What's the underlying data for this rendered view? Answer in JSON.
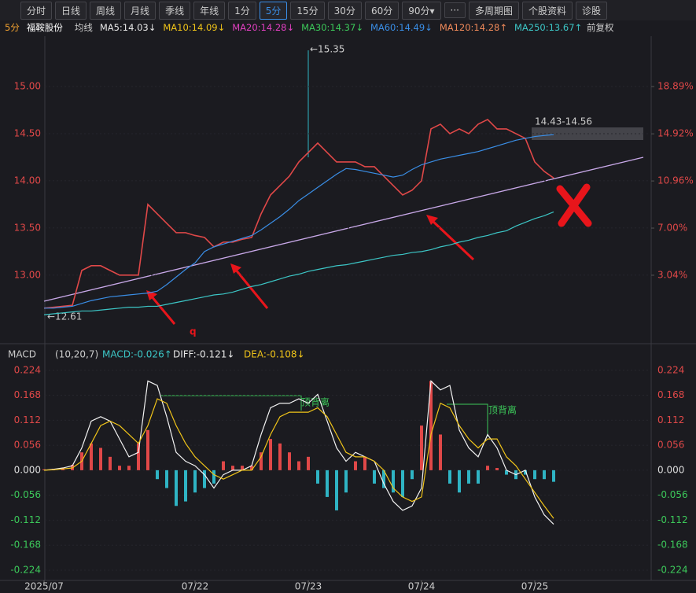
{
  "toolbar": {
    "buttons": [
      "分时",
      "日线",
      "周线",
      "月线",
      "季线",
      "年线",
      "1分",
      "5分",
      "15分",
      "30分",
      "60分",
      "90分▾",
      "···",
      "多周期图",
      "个股资料",
      "诊股"
    ],
    "active": 7
  },
  "info_bar": {
    "period": "5分",
    "stock": "福鞍股份",
    "label": "均线",
    "ma": [
      {
        "text": "MA5:14.03↓",
        "color": "#e8e8e8"
      },
      {
        "text": "MA10:14.09↓",
        "color": "#f0c419"
      },
      {
        "text": "MA20:14.28↓",
        "color": "#e040c0"
      },
      {
        "text": "MA30:14.37↓",
        "color": "#3cc85a"
      },
      {
        "text": "MA60:14.49↓",
        "color": "#3a8ee6"
      },
      {
        "text": "MA120:14.28↑",
        "color": "#f08a5a"
      },
      {
        "text": "MA250:13.67↑",
        "color": "#3cc6c6"
      }
    ],
    "adjust": "前复权"
  },
  "macd_header": {
    "name": "MACD",
    "params": "(10,20,7)",
    "items": [
      {
        "text": "MACD:-0.026↑",
        "color": "#3cc6c6"
      },
      {
        "text": "DIFF:-0.121↓",
        "color": "#e8e8e8"
      },
      {
        "text": "DEA:-0.108↓",
        "color": "#f0c419"
      }
    ]
  },
  "chart_data": [
    {
      "type": "line",
      "categories": [
        "2025/07",
        null,
        null,
        null,
        null,
        null,
        null,
        null,
        null,
        null,
        null,
        null,
        null,
        null,
        null,
        null,
        "07/22",
        null,
        null,
        null,
        null,
        null,
        null,
        null,
        null,
        null,
        null,
        null,
        "07/23",
        null,
        null,
        null,
        null,
        null,
        null,
        null,
        null,
        null,
        null,
        null,
        "07/24",
        null,
        null,
        null,
        null,
        null,
        null,
        null,
        null,
        null,
        null,
        null,
        "07/25",
        null,
        null
      ],
      "values": [
        12.65,
        12.66,
        12.67,
        12.68,
        13.05,
        13.1,
        13.1,
        13.05,
        13.0,
        13.0,
        13.0,
        13.75,
        13.65,
        13.55,
        13.45,
        13.45,
        13.42,
        13.4,
        13.3,
        13.35,
        13.35,
        13.38,
        13.4,
        13.65,
        13.85,
        13.95,
        14.05,
        14.2,
        14.3,
        14.4,
        14.3,
        14.2,
        14.2,
        14.2,
        14.15,
        14.15,
        14.05,
        13.95,
        13.85,
        13.9,
        14.0,
        14.55,
        14.6,
        14.5,
        14.55,
        14.5,
        14.6,
        14.65,
        14.55,
        14.55,
        14.5,
        14.45,
        14.2,
        14.1,
        14.03
      ],
      "color": "#e04848",
      "series": [
        {
          "name": "MA60",
          "color": "#3a8ee6",
          "values": [
            12.65,
            12.65,
            12.66,
            12.67,
            12.7,
            12.73,
            12.75,
            12.77,
            12.78,
            12.79,
            12.8,
            12.81,
            12.83,
            12.9,
            12.98,
            13.06,
            13.13,
            13.25,
            13.3,
            13.33,
            13.36,
            13.39,
            13.42,
            13.48,
            13.55,
            13.62,
            13.7,
            13.79,
            13.86,
            13.93,
            14.0,
            14.07,
            14.13,
            14.12,
            14.1,
            14.08,
            14.06,
            14.04,
            14.06,
            14.12,
            14.17,
            14.2,
            14.23,
            14.25,
            14.27,
            14.29,
            14.31,
            14.34,
            14.37,
            14.4,
            14.43,
            14.45,
            14.47,
            14.48,
            14.49
          ]
        },
        {
          "name": "MA250",
          "color": "#3cc6c6",
          "values": [
            12.58,
            12.59,
            12.6,
            12.61,
            12.62,
            12.62,
            12.63,
            12.64,
            12.65,
            12.66,
            12.66,
            12.67,
            12.67,
            12.69,
            12.71,
            12.73,
            12.75,
            12.77,
            12.79,
            12.8,
            12.82,
            12.85,
            12.88,
            12.9,
            12.93,
            12.96,
            12.99,
            13.01,
            13.04,
            13.06,
            13.08,
            13.1,
            13.11,
            13.13,
            13.15,
            13.17,
            13.19,
            13.21,
            13.22,
            13.24,
            13.25,
            13.27,
            13.3,
            13.32,
            13.35,
            13.37,
            13.4,
            13.42,
            13.45,
            13.47,
            13.52,
            13.56,
            13.6,
            13.63,
            13.67
          ]
        }
      ],
      "ylim": [
        12.29,
        15.5
      ],
      "yticks": [
        {
          "value": 13,
          "label": "13.00"
        },
        {
          "value": 13.5,
          "label": "13.50"
        },
        {
          "value": 14,
          "label": "14.00"
        },
        {
          "value": 14.5,
          "label": "14.50"
        },
        {
          "value": 15,
          "label": "15.00"
        }
      ],
      "y2lim": [
        -2.58,
        22.86
      ],
      "y2ticks": [
        {
          "value": 3.04,
          "label": "3.04%"
        },
        {
          "value": 7.0,
          "label": "7.00%"
        },
        {
          "value": 10.96,
          "label": "10.96%"
        },
        {
          "value": 14.92,
          "label": "14.92%"
        },
        {
          "value": 18.89,
          "label": "18.89%"
        }
      ],
      "annotations": [
        "←15.35",
        "←12.61",
        "14.43-14.56",
        "q"
      ]
    },
    {
      "type": "bar",
      "up_color": "#e04848",
      "down_color": "#2fb4c4",
      "values": [
        0.002,
        0.003,
        0.005,
        0.012,
        0.04,
        0.06,
        0.05,
        0.03,
        0.01,
        0.01,
        0.06,
        0.09,
        -0.02,
        -0.04,
        -0.08,
        -0.07,
        -0.05,
        -0.04,
        -0.03,
        0.02,
        0.01,
        0.01,
        0.01,
        0.04,
        0.07,
        0.06,
        0.04,
        0.02,
        0.03,
        -0.03,
        -0.06,
        -0.09,
        -0.05,
        0.02,
        0.03,
        -0.03,
        -0.04,
        -0.05,
        -0.06,
        -0.02,
        0.1,
        0.2,
        0.08,
        -0.03,
        -0.05,
        -0.03,
        -0.03,
        0.01,
        0.005,
        -0.01,
        -0.02,
        -0.01,
        -0.02,
        -0.02,
        -0.026
      ],
      "series": [
        {
          "name": "DIFF",
          "color": "#f2f2f2",
          "values": [
            0,
            0.002,
            0.005,
            0.01,
            0.05,
            0.11,
            0.12,
            0.11,
            0.07,
            0.03,
            0.04,
            0.2,
            0.19,
            0.12,
            0.04,
            0.02,
            0.01,
            -0.01,
            -0.04,
            -0.01,
            0,
            0,
            0.01,
            0.08,
            0.14,
            0.15,
            0.15,
            0.16,
            0.15,
            0.17,
            0.11,
            0.05,
            0.02,
            0.04,
            0.03,
            0.02,
            -0.03,
            -0.07,
            -0.09,
            -0.08,
            -0.04,
            0.2,
            0.18,
            0.19,
            0.09,
            0.05,
            0.03,
            0.08,
            0.05,
            0,
            -0.01,
            0,
            -0.06,
            -0.1,
            -0.121
          ]
        },
        {
          "name": "DEA",
          "color": "#f0c419",
          "values": [
            0,
            0.001,
            0.003,
            0.005,
            0.02,
            0.06,
            0.1,
            0.11,
            0.1,
            0.08,
            0.06,
            0.1,
            0.16,
            0.15,
            0.1,
            0.06,
            0.03,
            0.01,
            -0.01,
            -0.02,
            -0.01,
            0,
            0,
            0.03,
            0.08,
            0.12,
            0.13,
            0.13,
            0.13,
            0.14,
            0.12,
            0.08,
            0.04,
            0.03,
            0.03,
            0.02,
            0,
            -0.04,
            -0.06,
            -0.07,
            -0.06,
            0.08,
            0.15,
            0.14,
            0.1,
            0.07,
            0.05,
            0.07,
            0.07,
            0.03,
            0.01,
            -0.02,
            -0.05,
            -0.08,
            -0.108
          ]
        }
      ],
      "ylim": [
        -0.247,
        0.243
      ],
      "yticks": [
        0.224,
        0.168,
        0.112,
        0.056,
        {
          "value": 0,
          "label": "0.000"
        },
        -0.056,
        -0.112,
        -0.168,
        -0.224
      ],
      "annotations": [
        "顶背离",
        "顶背离"
      ]
    }
  ]
}
